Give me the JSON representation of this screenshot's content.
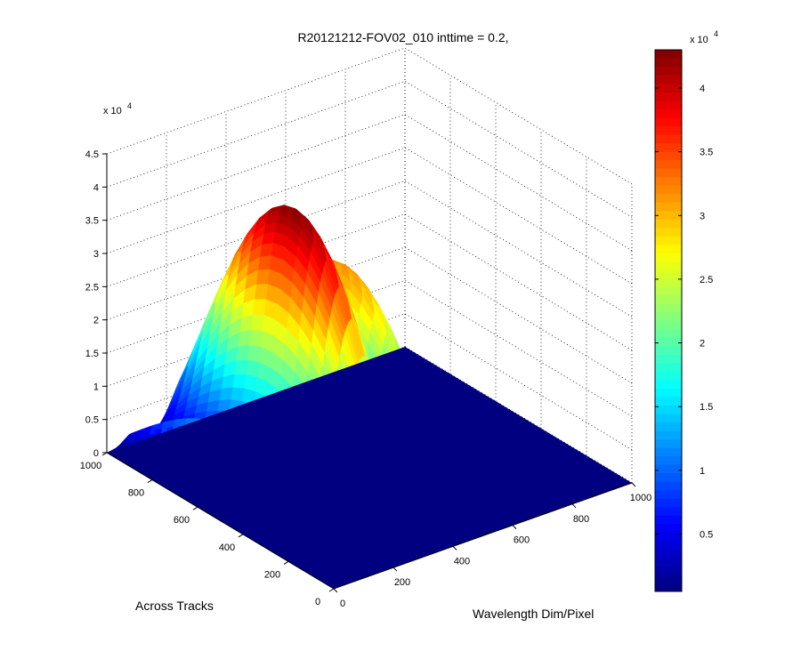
{
  "chart_data": {
    "type": "surface",
    "title": "R20121212-FOV02_010 inttime = 0.2,",
    "xlabel": "Wavelength Dim/Pixel",
    "ylabel": "Across Tracks",
    "z_multiplier": "x 10",
    "z_exponent": "4",
    "x_ticks": [
      "0",
      "200",
      "400",
      "600",
      "800",
      "1000"
    ],
    "y_ticks": [
      "0",
      "200",
      "400",
      "600",
      "800",
      "1000"
    ],
    "z_ticks": [
      "0",
      "0.5",
      "1",
      "1.5",
      "2",
      "2.5",
      "3",
      "3.5",
      "4",
      "4.5"
    ],
    "xlim": [
      0,
      1000
    ],
    "ylim": [
      0,
      1000
    ],
    "zlim": [
      0,
      45000
    ],
    "grid": true,
    "colormap": "jet",
    "colorbar": {
      "range": [
        500,
        43000
      ],
      "ticks": [
        "0.5",
        "1",
        "1.5",
        "2",
        "2.5",
        "3",
        "3.5",
        "4"
      ],
      "multiplier": "x 10",
      "exponent": "4",
      "placement": "right"
    },
    "signal": {
      "x_range": [
        0,
        500
      ],
      "y_range": [
        0,
        1000
      ],
      "peak_value": 43000,
      "spectrum_peaks": [
        {
          "x": 40,
          "value": 13000
        },
        {
          "x": 250,
          "value": 43000
        },
        {
          "x": 415,
          "value": 32000
        }
      ],
      "absorption_dips": [
        {
          "x": 80,
          "value": 6000
        },
        {
          "x": 335,
          "value": 4000
        }
      ]
    }
  }
}
